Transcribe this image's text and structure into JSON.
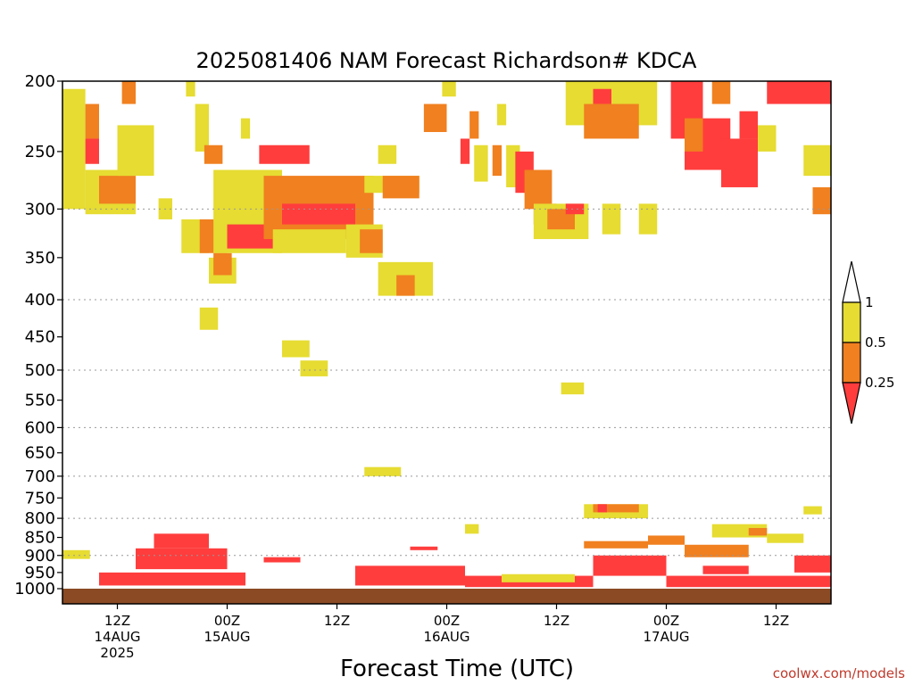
{
  "chart_data": {
    "type": "heatmap",
    "title": "2025081406 NAM Forecast Richardson# KDCA",
    "xlabel": "Forecast Time (UTC)",
    "ylabel": "",
    "credit": "coolwx.com/models",
    "y_axis": {
      "scale": "log-pressure",
      "inverted": true,
      "range_hPa": [
        1000,
        200
      ],
      "tick_labels": [
        "200",
        "250",
        "300",
        "350",
        "400",
        "450",
        "500",
        "550",
        "600",
        "650",
        "700",
        "750",
        "800",
        "850",
        "900",
        "950",
        "1000"
      ],
      "dotted_gridlines_hPa": [
        300,
        400,
        500,
        600,
        700,
        800,
        900
      ]
    },
    "x_axis": {
      "range_hours_from_init": [
        0,
        84
      ],
      "ticks": [
        {
          "hour": 6,
          "lines": [
            "12Z",
            "14AUG",
            "2025"
          ]
        },
        {
          "hour": 18,
          "lines": [
            "00Z",
            "15AUG"
          ]
        },
        {
          "hour": 30,
          "lines": [
            "12Z"
          ]
        },
        {
          "hour": 42,
          "lines": [
            "00Z",
            "16AUG"
          ]
        },
        {
          "hour": 54,
          "lines": [
            "12Z"
          ]
        },
        {
          "hour": 66,
          "lines": [
            "00Z",
            "17AUG"
          ]
        },
        {
          "hour": 78,
          "lines": [
            "12Z"
          ]
        }
      ]
    },
    "colorbar": {
      "labels": [
        "1",
        "0.5",
        "0.25"
      ],
      "bins": [
        {
          "range": "< 0.25",
          "color": "#ff3d3d"
        },
        {
          "range": "0.25 - 0.5",
          "color": "#f08020"
        },
        {
          "range": "0.5 - 1",
          "color": "#e6dc32"
        },
        {
          "range": "> 1",
          "color": "#ffffff"
        }
      ]
    },
    "surface_color": "#8b4a24",
    "cells_note_units": "x in forecast hours from 2025081406, p in hPa",
    "cells": [
      {
        "x0": 0,
        "x1": 2.5,
        "p0": 300,
        "p1": 205,
        "bin": "0.5 - 1"
      },
      {
        "x0": 2.5,
        "x1": 4,
        "p0": 240,
        "p1": 215,
        "bin": "0.25 - 0.5"
      },
      {
        "x0": 2.5,
        "x1": 4,
        "p0": 260,
        "p1": 240,
        "bin": "< 0.25"
      },
      {
        "x0": 2.5,
        "x1": 8,
        "p0": 305,
        "p1": 265,
        "bin": "0.5 - 1"
      },
      {
        "x0": 4,
        "x1": 8,
        "p0": 295,
        "p1": 270,
        "bin": "0.25 - 0.5"
      },
      {
        "x0": 6.5,
        "x1": 8,
        "p0": 215,
        "p1": 200,
        "bin": "0.25 - 0.5"
      },
      {
        "x0": 6,
        "x1": 10,
        "p0": 270,
        "p1": 230,
        "bin": "0.5 - 1"
      },
      {
        "x0": 10.5,
        "x1": 12,
        "p0": 310,
        "p1": 290,
        "bin": "0.5 - 1"
      },
      {
        "x0": 13,
        "x1": 16,
        "p0": 345,
        "p1": 310,
        "bin": "0.5 - 1"
      },
      {
        "x0": 13.5,
        "x1": 14.5,
        "p0": 210,
        "p1": 200,
        "bin": "0.5 - 1"
      },
      {
        "x0": 14.5,
        "x1": 16,
        "p0": 250,
        "p1": 215,
        "bin": "0.5 - 1"
      },
      {
        "x0": 15,
        "x1": 18,
        "p0": 345,
        "p1": 310,
        "bin": "0.25 - 0.5"
      },
      {
        "x0": 15.5,
        "x1": 17.5,
        "p0": 260,
        "p1": 245,
        "bin": "0.25 - 0.5"
      },
      {
        "x0": 16,
        "x1": 19,
        "p0": 380,
        "p1": 350,
        "bin": "0.5 - 1"
      },
      {
        "x0": 16.5,
        "x1": 18.5,
        "p0": 370,
        "p1": 345,
        "bin": "0.25 - 0.5"
      },
      {
        "x0": 16.5,
        "x1": 24,
        "p0": 345,
        "p1": 265,
        "bin": "0.5 - 1"
      },
      {
        "x0": 18,
        "x1": 23,
        "p0": 340,
        "p1": 315,
        "bin": "< 0.25"
      },
      {
        "x0": 19.5,
        "x1": 20.5,
        "p0": 240,
        "p1": 225,
        "bin": "0.5 - 1"
      },
      {
        "x0": 21.5,
        "x1": 27,
        "p0": 260,
        "p1": 245,
        "bin": "< 0.25"
      },
      {
        "x0": 22,
        "x1": 34,
        "p0": 330,
        "p1": 270,
        "bin": "0.25 - 0.5"
      },
      {
        "x0": 24,
        "x1": 32,
        "p0": 315,
        "p1": 295,
        "bin": "< 0.25"
      },
      {
        "x0": 23,
        "x1": 31,
        "p0": 345,
        "p1": 320,
        "bin": "0.5 - 1"
      },
      {
        "x0": 31,
        "x1": 35,
        "p0": 350,
        "p1": 315,
        "bin": "0.5 - 1"
      },
      {
        "x0": 32.5,
        "x1": 35,
        "p0": 345,
        "p1": 320,
        "bin": "0.25 - 0.5"
      },
      {
        "x0": 33,
        "x1": 39,
        "p0": 285,
        "p1": 270,
        "bin": "0.5 - 1"
      },
      {
        "x0": 35,
        "x1": 39,
        "p0": 290,
        "p1": 270,
        "bin": "0.25 - 0.5"
      },
      {
        "x0": 34.5,
        "x1": 36.5,
        "p0": 260,
        "p1": 245,
        "bin": "0.5 - 1"
      },
      {
        "x0": 34.5,
        "x1": 40.5,
        "p0": 395,
        "p1": 355,
        "bin": "0.5 - 1"
      },
      {
        "x0": 36.5,
        "x1": 38.5,
        "p0": 395,
        "p1": 370,
        "bin": "0.25 - 0.5"
      },
      {
        "x0": 39.5,
        "x1": 42,
        "p0": 235,
        "p1": 215,
        "bin": "0.25 - 0.5"
      },
      {
        "x0": 41.5,
        "x1": 43,
        "p0": 210,
        "p1": 200,
        "bin": "0.5 - 1"
      },
      {
        "x0": 43.5,
        "x1": 44.5,
        "p0": 260,
        "p1": 240,
        "bin": "< 0.25"
      },
      {
        "x0": 44.5,
        "x1": 45.5,
        "p0": 240,
        "p1": 220,
        "bin": "0.25 - 0.5"
      },
      {
        "x0": 45,
        "x1": 46.5,
        "p0": 275,
        "p1": 245,
        "bin": "0.5 - 1"
      },
      {
        "x0": 47,
        "x1": 48,
        "p0": 270,
        "p1": 245,
        "bin": "0.25 - 0.5"
      },
      {
        "x0": 47.5,
        "x1": 48.5,
        "p0": 230,
        "p1": 215,
        "bin": "0.5 - 1"
      },
      {
        "x0": 48.5,
        "x1": 50,
        "p0": 280,
        "p1": 245,
        "bin": "0.5 - 1"
      },
      {
        "x0": 49.5,
        "x1": 51.5,
        "p0": 285,
        "p1": 250,
        "bin": "< 0.25"
      },
      {
        "x0": 50.5,
        "x1": 53.5,
        "p0": 300,
        "p1": 265,
        "bin": "0.25 - 0.5"
      },
      {
        "x0": 51.5,
        "x1": 54,
        "p0": 315,
        "p1": 295,
        "bin": "< 0.25"
      },
      {
        "x0": 51.5,
        "x1": 57.5,
        "p0": 330,
        "p1": 295,
        "bin": "0.5 - 1"
      },
      {
        "x0": 53,
        "x1": 56,
        "p0": 320,
        "p1": 300,
        "bin": "0.25 - 0.5"
      },
      {
        "x0": 55,
        "x1": 57,
        "p0": 305,
        "p1": 295,
        "bin": "< 0.25"
      },
      {
        "x0": 55,
        "x1": 65,
        "p0": 230,
        "p1": 200,
        "bin": "0.5 - 1"
      },
      {
        "x0": 57,
        "x1": 63,
        "p0": 240,
        "p1": 215,
        "bin": "0.25 - 0.5"
      },
      {
        "x0": 58,
        "x1": 60,
        "p0": 215,
        "p1": 205,
        "bin": "< 0.25"
      },
      {
        "x0": 59,
        "x1": 61,
        "p0": 325,
        "p1": 295,
        "bin": "0.5 - 1"
      },
      {
        "x0": 63,
        "x1": 65,
        "p0": 325,
        "p1": 295,
        "bin": "0.5 - 1"
      },
      {
        "x0": 66.5,
        "x1": 70,
        "p0": 240,
        "p1": 200,
        "bin": "< 0.25"
      },
      {
        "x0": 68,
        "x1": 73,
        "p0": 265,
        "p1": 225,
        "bin": "< 0.25"
      },
      {
        "x0": 68,
        "x1": 70,
        "p0": 250,
        "p1": 225,
        "bin": "0.25 - 0.5"
      },
      {
        "x0": 71,
        "x1": 73,
        "p0": 215,
        "p1": 200,
        "bin": "0.25 - 0.5"
      },
      {
        "x0": 72,
        "x1": 76,
        "p0": 280,
        "p1": 240,
        "bin": "< 0.25"
      },
      {
        "x0": 74,
        "x1": 76,
        "p0": 240,
        "p1": 220,
        "bin": "< 0.25"
      },
      {
        "x0": 76,
        "x1": 78,
        "p0": 250,
        "p1": 230,
        "bin": "0.5 - 1"
      },
      {
        "x0": 77,
        "x1": 84,
        "p0": 215,
        "p1": 200,
        "bin": "< 0.25"
      },
      {
        "x0": 81,
        "x1": 84,
        "p0": 270,
        "p1": 245,
        "bin": "0.5 - 1"
      },
      {
        "x0": 82,
        "x1": 84,
        "p0": 305,
        "p1": 280,
        "bin": "0.25 - 0.5"
      },
      {
        "x0": 15,
        "x1": 17,
        "p0": 440,
        "p1": 410,
        "bin": "0.5 - 1"
      },
      {
        "x0": 24,
        "x1": 27,
        "p0": 480,
        "p1": 455,
        "bin": "0.5 - 1"
      },
      {
        "x0": 26,
        "x1": 29,
        "p0": 510,
        "p1": 485,
        "bin": "0.5 - 1"
      },
      {
        "x0": 54.5,
        "x1": 57,
        "p0": 540,
        "p1": 520,
        "bin": "0.5 - 1"
      },
      {
        "x0": 33,
        "x1": 37,
        "p0": 700,
        "p1": 680,
        "bin": "0.5 - 1"
      },
      {
        "x0": 57,
        "x1": 64,
        "p0": 800,
        "p1": 765,
        "bin": "0.5 - 1"
      },
      {
        "x0": 58,
        "x1": 63,
        "p0": 785,
        "p1": 765,
        "bin": "0.25 - 0.5"
      },
      {
        "x0": 58.5,
        "x1": 59.5,
        "p0": 785,
        "p1": 765,
        "bin": "< 0.25"
      },
      {
        "x0": 44,
        "x1": 45.5,
        "p0": 840,
        "p1": 815,
        "bin": "0.5 - 1"
      },
      {
        "x0": 71,
        "x1": 77,
        "p0": 850,
        "p1": 815,
        "bin": "0.5 - 1"
      },
      {
        "x0": 75,
        "x1": 77,
        "p0": 845,
        "p1": 825,
        "bin": "0.25 - 0.5"
      },
      {
        "x0": 77,
        "x1": 81,
        "p0": 865,
        "p1": 840,
        "bin": "0.5 - 1"
      },
      {
        "x0": 81,
        "x1": 83,
        "p0": 790,
        "p1": 770,
        "bin": "0.5 - 1"
      },
      {
        "x0": 0,
        "x1": 3,
        "p0": 910,
        "p1": 885,
        "bin": "0.5 - 1"
      },
      {
        "x0": 10,
        "x1": 16,
        "p0": 880,
        "p1": 840,
        "bin": "< 0.25"
      },
      {
        "x0": 8,
        "x1": 18,
        "p0": 940,
        "p1": 880,
        "bin": "< 0.25"
      },
      {
        "x0": 4,
        "x1": 20,
        "p0": 990,
        "p1": 950,
        "bin": "< 0.25"
      },
      {
        "x0": 22,
        "x1": 26,
        "p0": 920,
        "p1": 905,
        "bin": "< 0.25"
      },
      {
        "x0": 32,
        "x1": 44,
        "p0": 990,
        "p1": 930,
        "bin": "< 0.25"
      },
      {
        "x0": 38,
        "x1": 41,
        "p0": 885,
        "p1": 875,
        "bin": "< 0.25"
      },
      {
        "x0": 44,
        "x1": 58,
        "p0": 995,
        "p1": 960,
        "bin": "< 0.25"
      },
      {
        "x0": 48,
        "x1": 56,
        "p0": 980,
        "p1": 955,
        "bin": "0.5 - 1"
      },
      {
        "x0": 57,
        "x1": 64,
        "p0": 880,
        "p1": 860,
        "bin": "0.25 - 0.5"
      },
      {
        "x0": 64,
        "x1": 68,
        "p0": 870,
        "p1": 845,
        "bin": "0.25 - 0.5"
      },
      {
        "x0": 68,
        "x1": 75,
        "p0": 905,
        "p1": 870,
        "bin": "0.25 - 0.5"
      },
      {
        "x0": 58,
        "x1": 66,
        "p0": 960,
        "p1": 900,
        "bin": "< 0.25"
      },
      {
        "x0": 66,
        "x1": 84,
        "p0": 995,
        "p1": 960,
        "bin": "< 0.25"
      },
      {
        "x0": 70,
        "x1": 75,
        "p0": 955,
        "p1": 930,
        "bin": "< 0.25"
      },
      {
        "x0": 80,
        "x1": 84,
        "p0": 950,
        "p1": 900,
        "bin": "< 0.25"
      }
    ]
  }
}
